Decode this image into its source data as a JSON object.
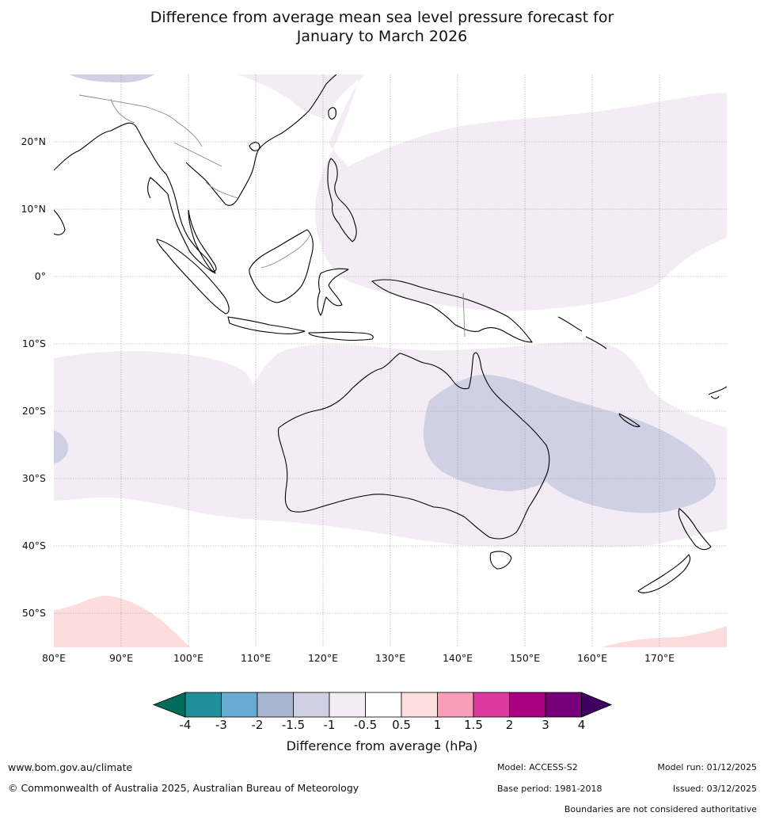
{
  "title_line1": "Difference from average mean sea level pressure forecast for",
  "title_line2": "January to March 2026",
  "map": {
    "lat_labels": [
      "20°N",
      "10°N",
      "0°",
      "10°S",
      "20°S",
      "30°S",
      "40°S",
      "50°S"
    ],
    "lon_labels": [
      "80°E",
      "90°E",
      "100°E",
      "110°E",
      "120°E",
      "130°E",
      "140°E",
      "150°E",
      "160°E",
      "170°E"
    ],
    "colors": {
      "land_outline": "#000000",
      "border": "#888888",
      "anom_neg_0_5_to_1": "#f3ecf5",
      "anom_neg_1_to_1_5": "#cfd0e3",
      "anom_pos_0_5_to_1": "#fcdcdc",
      "grid": "#999999"
    }
  },
  "colorbar": {
    "ticks": [
      "-4",
      "-3",
      "-2",
      "-1.5",
      "-1",
      "-0.5",
      "0.5",
      "1",
      "1.5",
      "2",
      "3",
      "4"
    ],
    "colors": [
      "#006b5a",
      "#1f9099",
      "#66abd1",
      "#a9b7d2",
      "#cfd0e3",
      "#f3ecf5",
      "#ffffff",
      "#fddede",
      "#f79eb8",
      "#dc3a9f",
      "#aa0082",
      "#77007a",
      "#420063"
    ],
    "label": "Difference from average (hPa)"
  },
  "footer": {
    "website": "www.bom.gov.au/climate",
    "copyright": "© Commonwealth of Australia 2025, Australian Bureau of Meteorology",
    "model": "Model: ACCESS-S2",
    "base_period": "Base period: 1981-2018",
    "model_run": "Model run: 01/12/2025",
    "issued": "Issued: 03/12/2025",
    "disclaimer": "Boundaries are not considered authoritative"
  }
}
